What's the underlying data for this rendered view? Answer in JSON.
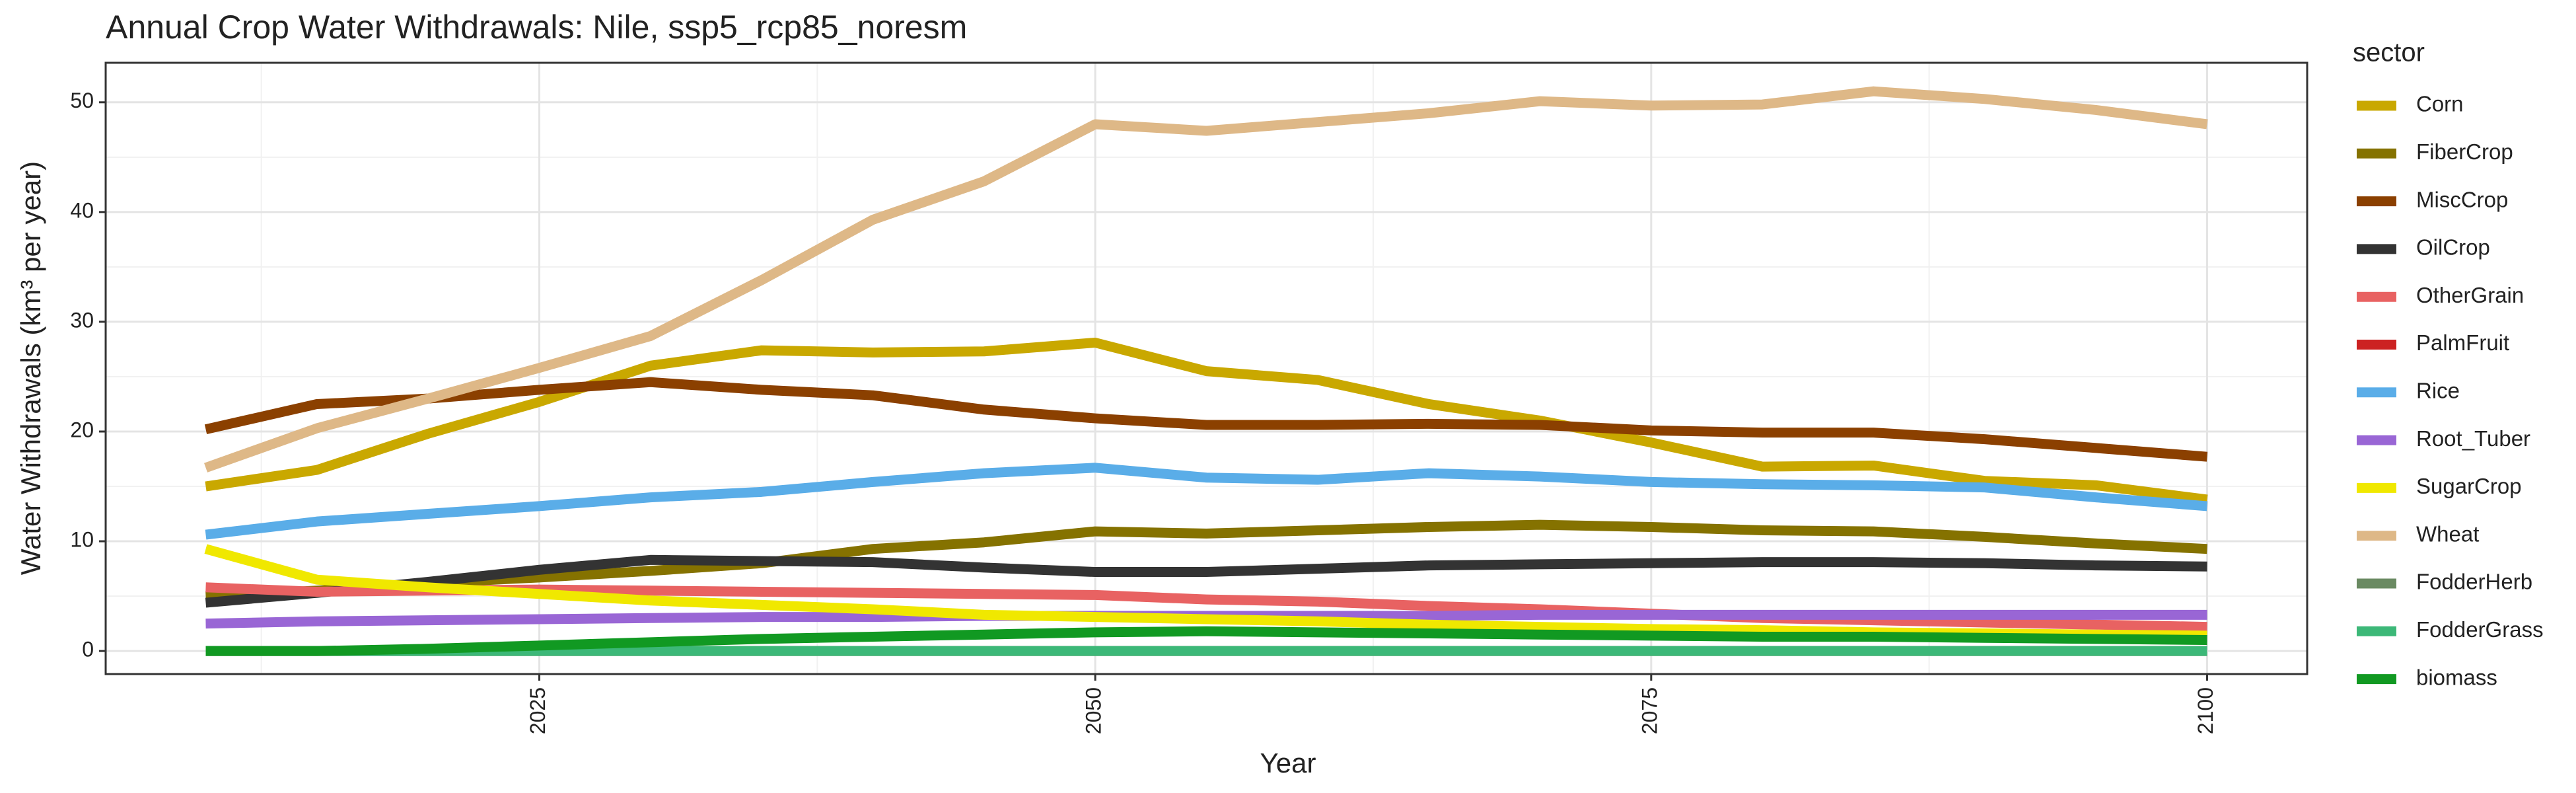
{
  "chart_data": {
    "type": "line",
    "title": "Annual Crop Water Withdrawals: Nile, ssp5_rcp85_noresm",
    "x_label": "Year",
    "y_label": "Water Withdrawals (km³ per year)",
    "legend_title": "sector",
    "legend": "right",
    "grid": true,
    "x": [
      2010,
      2015,
      2020,
      2025,
      2030,
      2035,
      2040,
      2045,
      2050,
      2055,
      2060,
      2065,
      2070,
      2075,
      2080,
      2085,
      2090,
      2095,
      2100
    ],
    "xlim": [
      2005.5,
      2104.5
    ],
    "xticks": [
      2025,
      2050,
      2075,
      2100
    ],
    "minor_xticks": [
      2012.5,
      2037.5,
      2062.5,
      2087.5
    ],
    "ylim": [
      -2.1,
      53.6
    ],
    "yticks": [
      0,
      10,
      20,
      30,
      40,
      50
    ],
    "minor_yticks": [
      5,
      15,
      25,
      35,
      45
    ],
    "series": [
      {
        "name": "Corn",
        "color": "#c9a800",
        "values": [
          15,
          16.5,
          19.8,
          22.7,
          26,
          27.4,
          27.2,
          27.3,
          28.1,
          25.5,
          24.7,
          22.5,
          21,
          19,
          16.8,
          16.9,
          15.5,
          15.1,
          13.8
        ]
      },
      {
        "name": "FiberCrop",
        "color": "#857200",
        "values": [
          5,
          5.5,
          6.2,
          6.7,
          7.3,
          8,
          9.3,
          9.9,
          10.9,
          10.7,
          11,
          11.3,
          11.5,
          11.3,
          11,
          10.9,
          10.4,
          9.8,
          9.3
        ]
      },
      {
        "name": "MiscCrop",
        "color": "#8b4000",
        "values": [
          20.2,
          22.5,
          23,
          23.8,
          24.5,
          23.8,
          23.3,
          22,
          21.2,
          20.6,
          20.6,
          20.7,
          20.6,
          20.1,
          19.9,
          19.9,
          19.3,
          18.5,
          17.7
        ]
      },
      {
        "name": "OilCrop",
        "color": "#333333",
        "values": [
          4.4,
          5.3,
          6.3,
          7.4,
          8.3,
          8.2,
          8.1,
          7.6,
          7.2,
          7.2,
          7.5,
          7.8,
          7.9,
          8,
          8.1,
          8.1,
          8,
          7.8,
          7.7
        ]
      },
      {
        "name": "OtherGrain",
        "color": "#e86262",
        "values": [
          5.8,
          5.4,
          5.5,
          5.6,
          5.5,
          5.4,
          5.3,
          5.2,
          5.1,
          4.7,
          4.5,
          4.1,
          3.8,
          3.4,
          3,
          2.8,
          2.6,
          2.4,
          2.2
        ]
      },
      {
        "name": "PalmFruit",
        "color": "#cc2222",
        "values": [
          0,
          0,
          0,
          0,
          0,
          0,
          0,
          0,
          0,
          0,
          0,
          0,
          0,
          0,
          0,
          0,
          0,
          0,
          0
        ]
      },
      {
        "name": "Rice",
        "color": "#5aade8",
        "values": [
          10.6,
          11.8,
          12.5,
          13.2,
          14,
          14.5,
          15.4,
          16.2,
          16.7,
          15.8,
          15.6,
          16.2,
          15.9,
          15.4,
          15.2,
          15.1,
          14.9,
          14,
          13.2
        ]
      },
      {
        "name": "Root_Tuber",
        "color": "#9966d5",
        "values": [
          2.5,
          2.7,
          2.8,
          2.9,
          3,
          3.1,
          3.1,
          3.2,
          3.2,
          3.2,
          3.2,
          3.2,
          3.3,
          3.3,
          3.3,
          3.3,
          3.3,
          3.3,
          3.3
        ]
      },
      {
        "name": "SugarCrop",
        "color": "#f0e800",
        "values": [
          9.3,
          6.5,
          5.8,
          5.2,
          4.6,
          4.2,
          3.8,
          3.3,
          3.1,
          2.9,
          2.7,
          2.4,
          2.2,
          2,
          1.9,
          1.7,
          1.6,
          1.5,
          1.4
        ]
      },
      {
        "name": "Wheat",
        "color": "#deb887",
        "values": [
          16.7,
          20.3,
          23,
          25.8,
          28.7,
          33.8,
          39.3,
          42.8,
          48,
          47.4,
          48.2,
          49,
          50.1,
          49.7,
          49.8,
          51,
          50.3,
          49.3,
          48
        ]
      },
      {
        "name": "FodderHerb",
        "color": "#6a8a62",
        "values": [
          0,
          0,
          0,
          0,
          0,
          0,
          0,
          0,
          0,
          0,
          0,
          0,
          0,
          0,
          0,
          0,
          0,
          0,
          0
        ]
      },
      {
        "name": "FodderGrass",
        "color": "#3cb878",
        "values": [
          0,
          0,
          0,
          0,
          0,
          0,
          0,
          0,
          0,
          0,
          0,
          0,
          0,
          0,
          0,
          0,
          0,
          0,
          0
        ]
      },
      {
        "name": "biomass",
        "color": "#119922",
        "values": [
          0,
          0,
          0.2,
          0.5,
          0.8,
          1.1,
          1.3,
          1.5,
          1.7,
          1.8,
          1.7,
          1.6,
          1.5,
          1.4,
          1.3,
          1.3,
          1.2,
          1.1,
          1
        ]
      }
    ]
  }
}
